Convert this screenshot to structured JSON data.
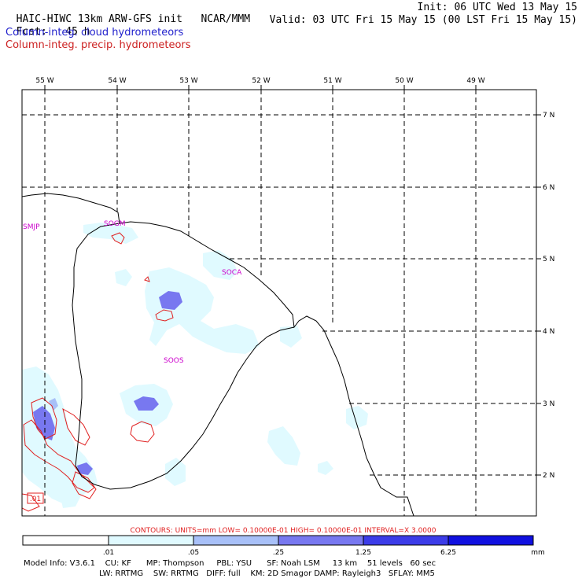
{
  "header": {
    "title": "HAIC-HIWC 13km ARW-GFS init",
    "org": "NCAR/MMM",
    "init": "Init: 06 UTC Wed 13 May 15",
    "fcst_label": "Fcst:",
    "fcst_value": "45 h",
    "valid": "Valid: 03 UTC Fri 15 May 15 (00 LST Fri 15 May 15)",
    "field_cloud": "Column-integ. cloud hydrometeors",
    "field_precip": "Column-integ. precip. hydrometeors"
  },
  "colors": {
    "cloud_text": "#1f1fcc",
    "precip_text": "#cc1f1f",
    "station": "#cc00cc",
    "shade_1": "#e0faff",
    "shade_2": "#a8c0f8",
    "shade_3": "#7878f0",
    "shade_4": "#3c3ce8",
    "shade_5": "#1010e0",
    "contour": "#e02020"
  },
  "map": {
    "lon_labels": [
      "55 W",
      "54 W",
      "53 W",
      "52 W",
      "51 W",
      "50 W",
      "49 W"
    ],
    "lat_labels": [
      "7 N",
      "6 N",
      "5 N",
      "4 N",
      "3 N",
      "2 N"
    ],
    "stations": [
      "SMJP",
      "SOGM",
      "SOCA",
      "SOOS"
    ],
    "contour_marker": ".01"
  },
  "legend": {
    "contours_line": "CONTOURS:  UNITS=mm  LOW= 0.10000E-01  HIGH= 0.10000E-01  INTERVAL=X  3.0000",
    "thresholds": [
      ".01",
      ".05",
      ".25",
      "1.25",
      "6.25"
    ],
    "units": "mm"
  },
  "model_info": {
    "line1": "Model Info: V3.6.1    CU: KF      MP: Thompson     PBL: YSU      SF: Noah LSM     13 km    51 levels   60 sec",
    "line2": "LW: RRTMG    SW: RRTMG   DIFF: full    KM: 2D Smagor DAMP: Rayleigh3   SFLAY: MM5"
  }
}
